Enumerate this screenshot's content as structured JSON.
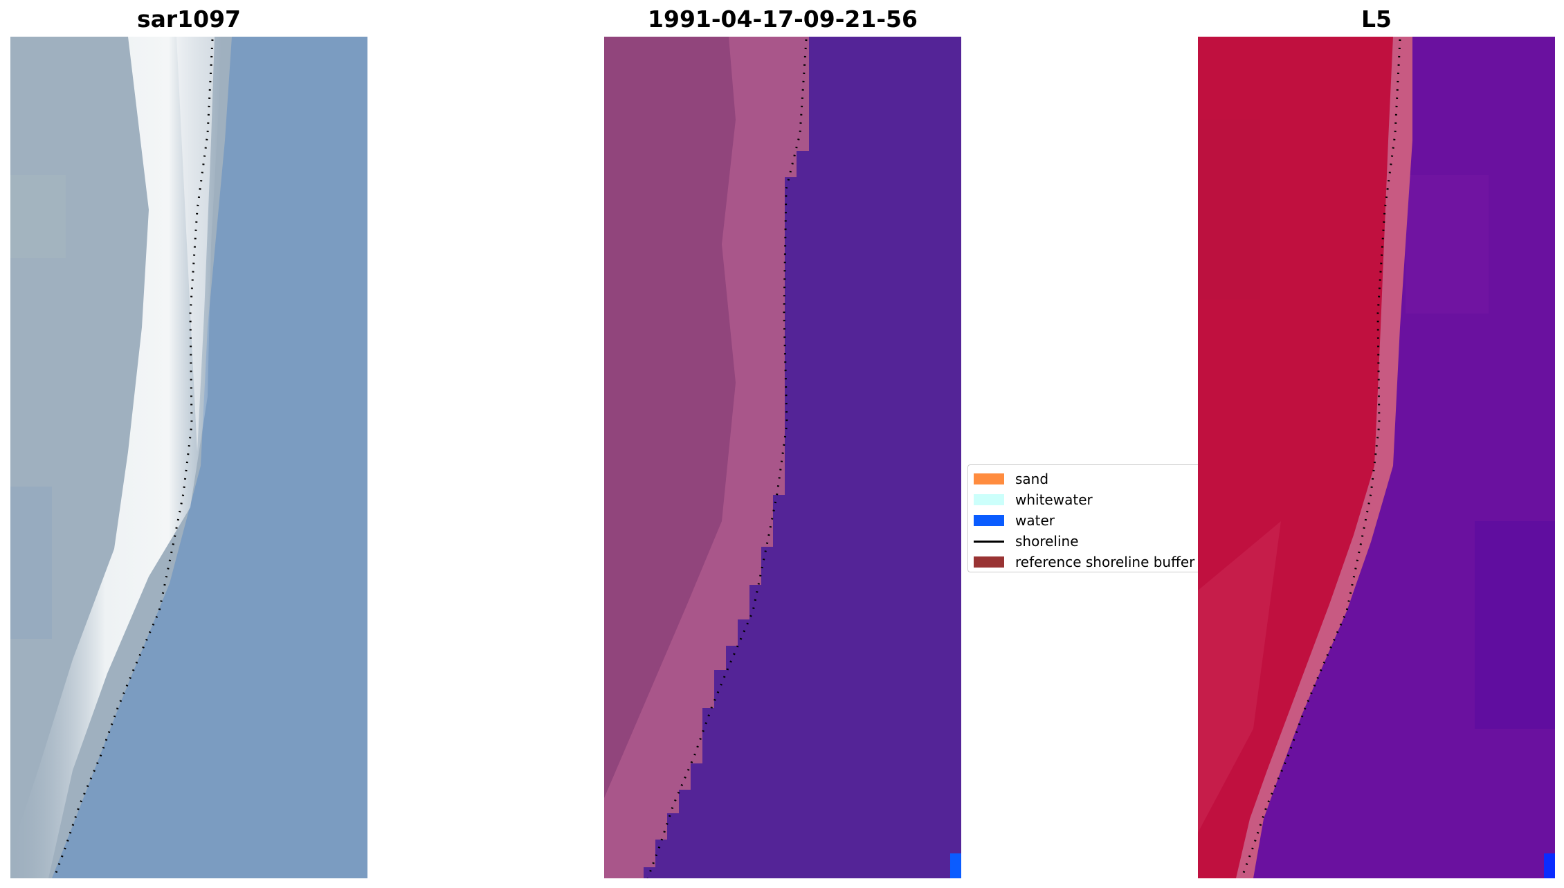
{
  "panels": [
    {
      "title": "sar1097"
    },
    {
      "title": "1991-04-17-09-21-56"
    },
    {
      "title": "L5"
    }
  ],
  "legend": {
    "items": [
      {
        "label": "sand",
        "color": "#ff8c3f",
        "kind": "patch"
      },
      {
        "label": "whitewater",
        "color": "#ccfffb",
        "kind": "patch"
      },
      {
        "label": "water",
        "color": "#0a5cff",
        "kind": "patch"
      },
      {
        "label": "shoreline",
        "color": "#000000",
        "kind": "line"
      },
      {
        "label": "reference shoreline buffer",
        "color": "#993333",
        "kind": "patch"
      }
    ]
  },
  "colors": {
    "rgb_land": "#9daec0",
    "rgb_surf": "#e8eef2",
    "rgb_water": "#7a9cc2",
    "class_land": "#91457c",
    "class_land_light": "#b25c8f",
    "class_water": "#542497",
    "water_pixel": "#0a5cff",
    "index_land": "#c0103f",
    "index_buffer": "#c85a82",
    "index_water": "#6a119f"
  }
}
